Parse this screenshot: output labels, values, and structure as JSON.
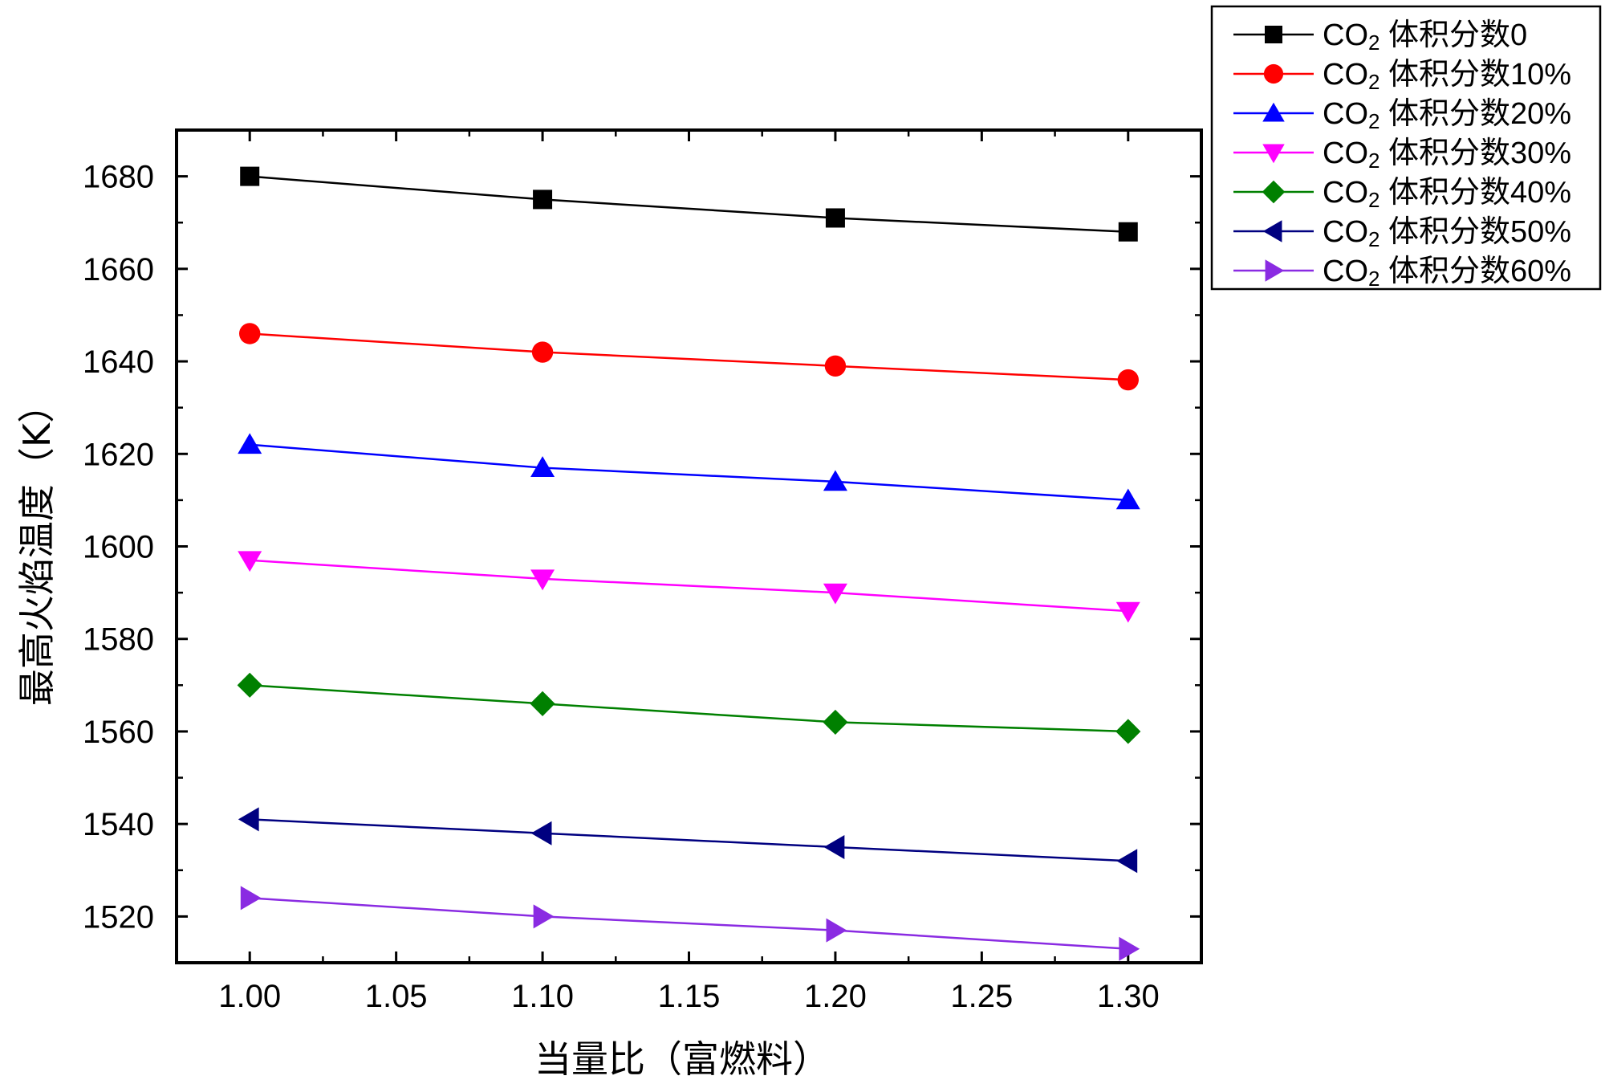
{
  "chart_data": {
    "type": "line",
    "title": "",
    "xlabel": "当量比（富燃料）",
    "ylabel": "最高火焰温度（K）",
    "xlim": [
      0.975,
      1.325
    ],
    "ylim": [
      1510,
      1690
    ],
    "x": [
      1.0,
      1.1,
      1.2,
      1.3
    ],
    "xticks": [
      1.0,
      1.05,
      1.1,
      1.15,
      1.2,
      1.25,
      1.3
    ],
    "xtick_labels": [
      "1.00",
      "1.05",
      "1.10",
      "1.15",
      "1.20",
      "1.25",
      "1.30"
    ],
    "yticks": [
      1520,
      1540,
      1560,
      1580,
      1600,
      1620,
      1640,
      1660,
      1680
    ],
    "ytick_labels": [
      "1520",
      "1540",
      "1560",
      "1580",
      "1600",
      "1620",
      "1640",
      "1660",
      "1680"
    ],
    "grid": false,
    "legend_position": "outside-top-right",
    "series": [
      {
        "name": "CO2 体积分数0",
        "label_main": "CO",
        "label_sub": "2",
        "label_rest": " 体积分数0",
        "color": "#000000",
        "marker": "square",
        "values": [
          1680,
          1675,
          1671,
          1668
        ]
      },
      {
        "name": "CO2 体积分数10%",
        "label_main": "CO",
        "label_sub": "2",
        "label_rest": " 体积分数10%",
        "color": "#ff0000",
        "marker": "circle",
        "values": [
          1646,
          1642,
          1639,
          1636
        ]
      },
      {
        "name": "CO2 体积分数20%",
        "label_main": "CO",
        "label_sub": "2",
        "label_rest": " 体积分数20%",
        "color": "#0000ff",
        "marker": "triangle-up",
        "values": [
          1622,
          1617,
          1614,
          1610
        ]
      },
      {
        "name": "CO2 体积分数30%",
        "label_main": "CO",
        "label_sub": "2",
        "label_rest": " 体积分数30%",
        "color": "#ff00ff",
        "marker": "triangle-down",
        "values": [
          1597,
          1593,
          1590,
          1586
        ]
      },
      {
        "name": "CO2 体积分数40%",
        "label_main": "CO",
        "label_sub": "2",
        "label_rest": " 体积分数40%",
        "color": "#008000",
        "marker": "diamond",
        "values": [
          1570,
          1566,
          1562,
          1560
        ]
      },
      {
        "name": "CO2 体积分数50%",
        "label_main": "CO",
        "label_sub": "2",
        "label_rest": " 体积分数50%",
        "color": "#000080",
        "marker": "triangle-left",
        "values": [
          1541,
          1538,
          1535,
          1532
        ]
      },
      {
        "name": "CO2 体积分数60%",
        "label_main": "CO",
        "label_sub": "2",
        "label_rest": " 体积分数60%",
        "color": "#8a2be2",
        "marker": "triangle-right",
        "values": [
          1524,
          1520,
          1517,
          1513
        ]
      }
    ]
  }
}
